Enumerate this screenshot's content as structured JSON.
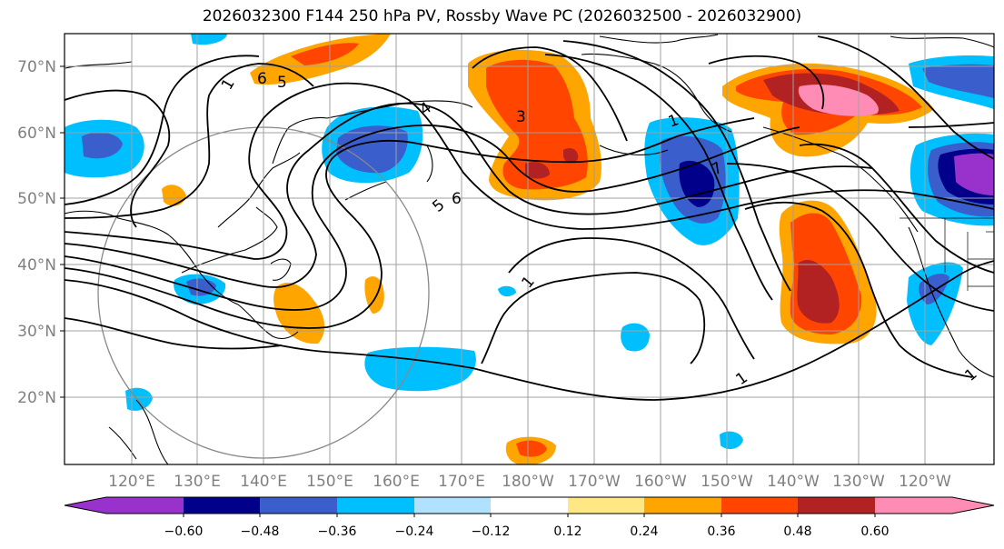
{
  "title": "2026032300 F144 250 hPa PV, Rossby Wave PC (2026032500 - 2026032900)",
  "lat_labels": [
    "70°N",
    "60°N",
    "50°N",
    "40°N",
    "30°N",
    "20°N"
  ],
  "lon_labels": [
    "120°E",
    "130°E",
    "140°E",
    "150°E",
    "160°E",
    "170°E",
    "180°W",
    "170°W",
    "160°W",
    "150°W",
    "140°W",
    "130°W",
    "120°W"
  ],
  "colorbar": {
    "tick_labels": [
      "−0.60",
      "−0.48",
      "−0.36",
      "−0.24",
      "−0.12",
      "0.12",
      "0.24",
      "0.36",
      "0.48",
      "0.60"
    ],
    "colors": [
      "#9932cc",
      "#00008b",
      "#3a5fcd",
      "#00bfff",
      "#b0e2ff",
      "#ffffff",
      "#ffe784",
      "#ffa500",
      "#ff4500",
      "#b22222",
      "#ff8cb4"
    ]
  },
  "contour_labels": [
    "1",
    "6",
    "5",
    "4",
    "3",
    "5",
    "6",
    "1",
    "1",
    "7",
    "1",
    "1"
  ],
  "colors": {
    "purple": "#9932cc",
    "navy": "#00008b",
    "royal_blue": "#3a5fcd",
    "sky_blue": "#00bfff",
    "light_blue": "#b0e2ff",
    "light_yellow": "#ffe784",
    "orange": "#ffa500",
    "orange_red": "#ff4500",
    "firebrick": "#b22222",
    "pink": "#ff8cb4",
    "grid": "#a0a0a0",
    "axis_text": "#808080"
  }
}
